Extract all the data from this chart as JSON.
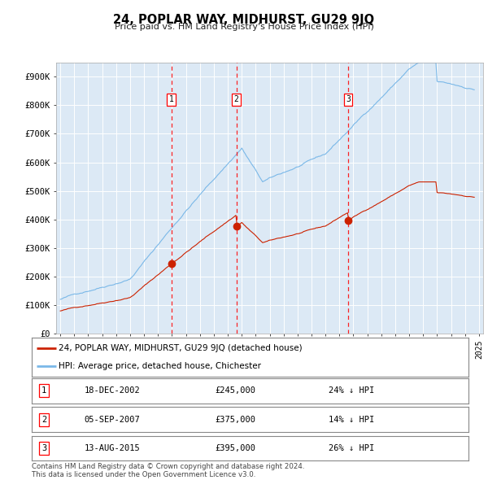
{
  "title": "24, POPLAR WAY, MIDHURST, GU29 9JQ",
  "subtitle": "Price paid vs. HM Land Registry's House Price Index (HPI)",
  "bg_color": "#dce9f5",
  "hpi_color": "#7ab8e8",
  "price_color": "#cc2200",
  "ylim": [
    0,
    950000
  ],
  "yticks": [
    0,
    100000,
    200000,
    300000,
    400000,
    500000,
    600000,
    700000,
    800000,
    900000
  ],
  "ytick_labels": [
    "£0",
    "£100K",
    "£200K",
    "£300K",
    "£400K",
    "£500K",
    "£600K",
    "£700K",
    "£800K",
    "£900K"
  ],
  "sale_dates": [
    2002.96,
    2007.62,
    2015.62
  ],
  "sale_prices": [
    245000,
    375000,
    395000
  ],
  "sale_labels": [
    "1",
    "2",
    "3"
  ],
  "legend_line1": "24, POPLAR WAY, MIDHURST, GU29 9JQ (detached house)",
  "legend_line2": "HPI: Average price, detached house, Chichester",
  "table_data": [
    [
      "1",
      "18-DEC-2002",
      "£245,000",
      "24% ↓ HPI"
    ],
    [
      "2",
      "05-SEP-2007",
      "£375,000",
      "14% ↓ HPI"
    ],
    [
      "3",
      "13-AUG-2015",
      "£395,000",
      "26% ↓ HPI"
    ]
  ],
  "footer": "Contains HM Land Registry data © Crown copyright and database right 2024.\nThis data is licensed under the Open Government Licence v3.0."
}
